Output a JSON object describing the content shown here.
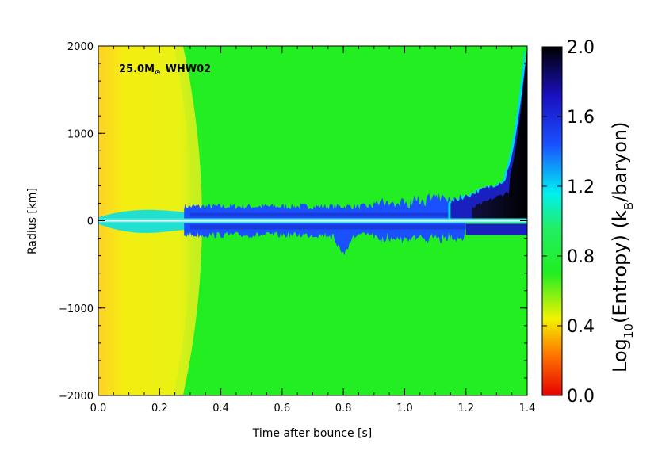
{
  "chart_data": {
    "type": "heatmap",
    "xlabel": "Time after bounce [s]",
    "ylabel": "Radius [km]",
    "xlim": [
      0.0,
      1.4
    ],
    "ylim": [
      -2000,
      2000
    ],
    "x_ticks": [
      0.0,
      0.2,
      0.4,
      0.6,
      0.8,
      1.0,
      1.2,
      1.4
    ],
    "x_tick_labels": [
      "0.0",
      "0.2",
      "0.4",
      "0.6",
      "0.8",
      "1.0",
      "1.2",
      "1.4"
    ],
    "y_ticks": [
      2000,
      1000,
      0,
      -1000,
      -2000
    ],
    "y_tick_labels": [
      "2000",
      "1000",
      "0",
      "−1000",
      "−2000"
    ],
    "annotation": {
      "mass": "25.0M",
      "symbol": "⊙",
      "model": "WHW02"
    },
    "colorbar": {
      "title_prefix": "Log",
      "title_sub": "10",
      "title_mid": "(Entropy) (k",
      "title_sub2": "B",
      "title_end": "/baryon)",
      "range": [
        0.0,
        2.0
      ],
      "ticks": [
        2.0,
        1.6,
        1.2,
        0.8,
        0.4,
        0.0
      ],
      "tick_labels": [
        "2.0",
        "1.6",
        "1.2",
        "0.8",
        "0.4",
        "0.0"
      ],
      "colors": [
        "#e80000",
        "#ff7a00",
        "#f2f200",
        "#22ee22",
        "#22ee66",
        "#00f0f0",
        "#1a50ff",
        "#1a10c0",
        "#000000"
      ]
    },
    "features": {
      "background_entropy": 0.8,
      "inner_region_entropy": 0.45,
      "inner_region_extent_s": 0.38,
      "accretion_band_entropy": 1.5,
      "explosion_start_s": 1.15,
      "shock_radius_at_1_4_s_km": 2000
    }
  }
}
